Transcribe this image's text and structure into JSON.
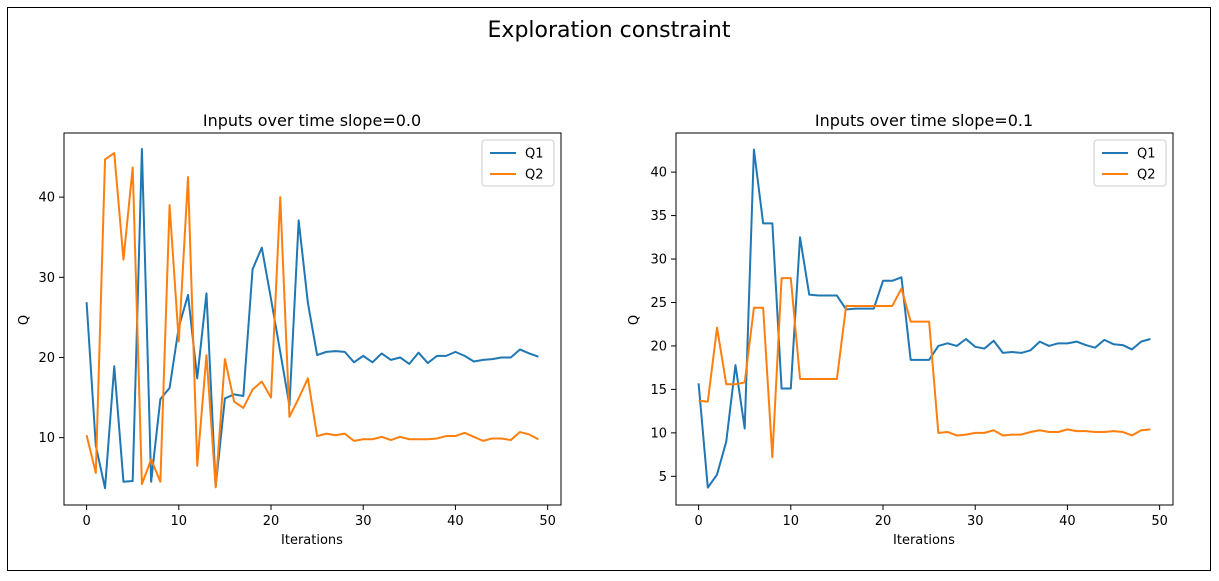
{
  "figure": {
    "title": "Exploration constraint"
  },
  "chart_data": [
    {
      "type": "line",
      "title": "Inputs over time slope=0.0",
      "xlabel": "Iterations",
      "ylabel": "Q",
      "xlim": [
        -2.45,
        51.45
      ],
      "ylim": [
        1.6,
        48.0
      ],
      "xticks": [
        0,
        10,
        20,
        30,
        40,
        50
      ],
      "yticks": [
        10,
        20,
        30,
        40
      ],
      "legend": "top-right",
      "grid": false,
      "series": [
        {
          "name": "Q1",
          "color": "#1f77b4",
          "x": [
            0,
            1,
            2,
            3,
            4,
            5,
            6,
            7,
            8,
            9,
            10,
            11,
            12,
            13,
            14,
            15,
            16,
            17,
            18,
            19,
            20,
            21,
            22,
            23,
            24,
            25,
            26,
            27,
            28,
            29,
            30,
            31,
            32,
            33,
            34,
            35,
            36,
            37,
            38,
            39,
            40,
            41,
            42,
            43,
            44,
            45,
            46,
            47,
            48,
            49
          ],
          "values": [
            26.9,
            9.0,
            3.7,
            18.9,
            4.5,
            4.6,
            46.0,
            4.5,
            14.8,
            16.2,
            23.8,
            27.8,
            17.4,
            28.0,
            3.9,
            14.9,
            15.4,
            15.2,
            31.0,
            33.7,
            27.3,
            20.7,
            14.0,
            37.1,
            26.8,
            20.3,
            20.7,
            20.8,
            20.7,
            19.4,
            20.2,
            19.4,
            20.5,
            19.7,
            20.0,
            19.2,
            20.6,
            19.3,
            20.2,
            20.2,
            20.7,
            20.2,
            19.5,
            19.7,
            19.8,
            20.0,
            20.0,
            21.0,
            20.5,
            20.1
          ]
        },
        {
          "name": "Q2",
          "color": "#ff7f0e",
          "x": [
            0,
            1,
            2,
            3,
            4,
            5,
            6,
            7,
            8,
            9,
            10,
            11,
            12,
            13,
            14,
            15,
            16,
            17,
            18,
            19,
            20,
            21,
            22,
            23,
            24,
            25,
            26,
            27,
            28,
            29,
            30,
            31,
            32,
            33,
            34,
            35,
            36,
            37,
            38,
            39,
            40,
            41,
            42,
            43,
            44,
            45,
            46,
            47,
            48,
            49
          ],
          "values": [
            10.3,
            5.6,
            44.7,
            45.5,
            32.2,
            43.7,
            4.2,
            7.3,
            4.5,
            39.0,
            22.0,
            42.5,
            6.5,
            20.3,
            3.8,
            19.8,
            14.5,
            13.7,
            16.0,
            17.0,
            15.0,
            40.0,
            12.6,
            14.9,
            17.4,
            10.2,
            10.5,
            10.3,
            10.5,
            9.6,
            9.8,
            9.8,
            10.1,
            9.7,
            10.1,
            9.8,
            9.8,
            9.8,
            9.9,
            10.2,
            10.2,
            10.6,
            10.1,
            9.6,
            9.9,
            9.9,
            9.7,
            10.7,
            10.4,
            9.8
          ]
        }
      ]
    },
    {
      "type": "line",
      "title": "Inputs over time slope=0.1",
      "xlabel": "Iterations",
      "ylabel": "Q",
      "xlim": [
        -2.45,
        51.45
      ],
      "ylim": [
        1.7,
        44.5
      ],
      "xticks": [
        0,
        10,
        20,
        30,
        40,
        50
      ],
      "yticks": [
        5,
        10,
        15,
        20,
        25,
        30,
        35,
        40
      ],
      "legend": "top-right",
      "grid": false,
      "series": [
        {
          "name": "Q1",
          "color": "#1f77b4",
          "x": [
            0,
            1,
            2,
            3,
            4,
            5,
            6,
            7,
            8,
            9,
            10,
            11,
            12,
            13,
            14,
            15,
            16,
            17,
            18,
            19,
            20,
            21,
            22,
            23,
            24,
            25,
            26,
            27,
            28,
            29,
            30,
            31,
            32,
            33,
            34,
            35,
            36,
            37,
            38,
            39,
            40,
            41,
            42,
            43,
            44,
            45,
            46,
            47,
            48,
            49
          ],
          "values": [
            15.7,
            3.7,
            5.2,
            9.0,
            17.8,
            10.5,
            42.6,
            34.1,
            34.1,
            15.1,
            15.1,
            32.5,
            25.9,
            25.8,
            25.8,
            25.8,
            24.2,
            24.3,
            24.3,
            24.3,
            27.5,
            27.5,
            27.9,
            18.4,
            18.4,
            18.4,
            20.0,
            20.3,
            20.0,
            20.8,
            19.9,
            19.7,
            20.6,
            19.2,
            19.3,
            19.2,
            19.5,
            20.5,
            20.0,
            20.3,
            20.3,
            20.5,
            20.1,
            19.8,
            20.7,
            20.2,
            20.1,
            19.6,
            20.5,
            20.8
          ]
        },
        {
          "name": "Q2",
          "color": "#ff7f0e",
          "x": [
            0,
            1,
            2,
            3,
            4,
            5,
            6,
            7,
            8,
            9,
            10,
            11,
            12,
            13,
            14,
            15,
            16,
            17,
            18,
            19,
            20,
            21,
            22,
            23,
            24,
            25,
            26,
            27,
            28,
            29,
            30,
            31,
            32,
            33,
            34,
            35,
            36,
            37,
            38,
            39,
            40,
            41,
            42,
            43,
            44,
            45,
            46,
            47,
            48,
            49
          ],
          "values": [
            13.7,
            13.6,
            22.1,
            15.6,
            15.6,
            15.8,
            24.4,
            24.4,
            7.2,
            27.8,
            27.8,
            16.2,
            16.2,
            16.2,
            16.2,
            16.2,
            24.6,
            24.6,
            24.6,
            24.6,
            24.6,
            24.6,
            26.6,
            22.8,
            22.8,
            22.8,
            10.0,
            10.1,
            9.7,
            9.8,
            10.0,
            10.0,
            10.3,
            9.7,
            9.8,
            9.8,
            10.1,
            10.3,
            10.1,
            10.1,
            10.4,
            10.2,
            10.2,
            10.1,
            10.1,
            10.2,
            10.1,
            9.7,
            10.3,
            10.4
          ]
        }
      ]
    }
  ]
}
